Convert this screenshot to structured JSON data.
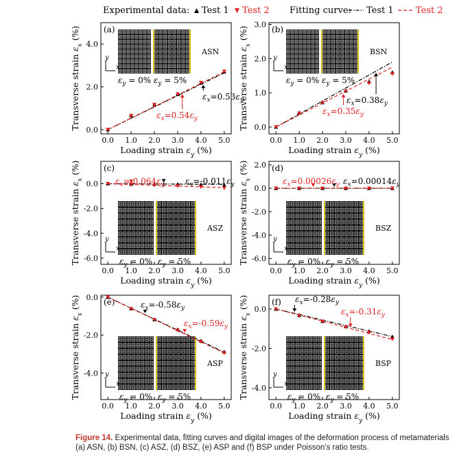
{
  "legend": {
    "experimental_label": "Experimental data:",
    "fitting_label": "Fitting curve:",
    "test1": "Test 1",
    "test2": "Test 2",
    "color_test1": "#000000",
    "color_test2": "#e02020"
  },
  "caption": {
    "label": "Figure 14.",
    "text": " Experimental data, fitting curves and digital images of the deformation process of metamaterials (a) ASN, (b) BSN, (c) ASZ, (d) BSZ, (e) ASP and (f) BSP under Poisson’s ratio tests."
  },
  "chart_data": [
    {
      "type": "line",
      "panel": "(a)",
      "sample": "ASN",
      "xlabel": "Loading strain εy (%)",
      "ylabel": "Transverse strain εx (%)",
      "xlim": [
        -0.3,
        5.3
      ],
      "ylim": [
        -0.2,
        5.0
      ],
      "xticks": [
        0.0,
        1.0,
        2.0,
        3.0,
        4.0,
        5.0
      ],
      "yticks": [
        0.0,
        2.0,
        4.0
      ],
      "x": [
        0,
        1,
        2,
        3,
        4,
        5
      ],
      "series": [
        {
          "name": "Test 1",
          "values": [
            0.0,
            0.66,
            1.18,
            1.65,
            2.18,
            2.7
          ]
        },
        {
          "name": "Test 2",
          "values": [
            0.0,
            0.65,
            1.17,
            1.66,
            2.2,
            2.72
          ]
        }
      ],
      "fits": [
        {
          "name": "Test 1",
          "slope": 0.53
        },
        {
          "name": "Test 2",
          "slope": 0.54
        }
      ],
      "annotations": {
        "test1": "0.53",
        "test2": "0.54"
      },
      "images": {
        "top": true,
        "left": "εy = 0%",
        "right": "εy = 5%"
      }
    },
    {
      "type": "line",
      "panel": "(b)",
      "sample": "BSN",
      "xlabel": "Loading strain εy (%)",
      "ylabel": "Transverse strain εx (%)",
      "xlim": [
        -0.3,
        5.3
      ],
      "ylim": [
        -0.2,
        3.05
      ],
      "xticks": [
        0.0,
        1.0,
        2.0,
        3.0,
        4.0,
        5.0
      ],
      "yticks": [
        0.0,
        1.0,
        2.0,
        3.0
      ],
      "x": [
        0,
        1,
        2,
        3,
        4,
        5
      ],
      "series": [
        {
          "name": "Test 1",
          "values": [
            0.0,
            0.42,
            0.72,
            1.06,
            1.33,
            1.6
          ]
        },
        {
          "name": "Test 2",
          "values": [
            0.0,
            0.4,
            0.7,
            1.05,
            1.28,
            1.55
          ]
        }
      ],
      "fits": [
        {
          "name": "Test 1",
          "slope": 0.38
        },
        {
          "name": "Test 2",
          "slope": 0.35
        }
      ],
      "annotations": {
        "test1": "0.38",
        "test2": "0.35"
      },
      "images": {
        "top": true,
        "left": "εy = 0%",
        "right": "εy = 5%"
      }
    },
    {
      "type": "line",
      "panel": "(c)",
      "sample": "ASZ",
      "xlabel": "Loading strain εy (%)",
      "ylabel": "Transverse strain εx (%)",
      "xlim": [
        -0.3,
        5.3
      ],
      "ylim": [
        -6.5,
        1.8
      ],
      "xticks": [
        0.0,
        1.0,
        2.0,
        3.0,
        4.0,
        5.0
      ],
      "yticks": [
        0.0,
        -2.0,
        -4.0,
        -6.0
      ],
      "x": [
        0,
        1,
        2,
        3,
        4,
        5
      ],
      "series": [
        {
          "name": "Test 1",
          "values": [
            0.0,
            -0.01,
            -0.02,
            -0.04,
            -0.06,
            -0.1
          ]
        },
        {
          "name": "Test 2",
          "values": [
            0.0,
            -0.05,
            -0.13,
            -0.19,
            -0.26,
            -0.35
          ]
        }
      ],
      "fits": [
        {
          "name": "Test 1",
          "slope": -0.011
        },
        {
          "name": "Test 2",
          "slope": -0.064
        }
      ],
      "annotations": {
        "test1": "-0.011",
        "test2": "-0.064"
      },
      "images": {
        "top": false,
        "left": "εy = 0%",
        "right": "εy = 5%"
      }
    },
    {
      "type": "line",
      "panel": "(d)",
      "sample": "BSZ",
      "xlabel": "Loading strain εy (%)",
      "ylabel": "Transverse strain εx (%)",
      "xlim": [
        -0.3,
        5.3
      ],
      "ylim": [
        -6.5,
        2.3
      ],
      "xticks": [
        0.0,
        1.0,
        2.0,
        3.0,
        4.0,
        5.0
      ],
      "yticks": [
        2.0,
        0.0,
        -2.0,
        -4.0,
        -6.0
      ],
      "x": [
        0,
        1,
        2,
        3,
        4,
        5
      ],
      "series": [
        {
          "name": "Test 1",
          "values": [
            0.0,
            0.0,
            0.0,
            0.0,
            0.0,
            0.0
          ]
        },
        {
          "name": "Test 2",
          "values": [
            0.0,
            0.0,
            0.0,
            0.0,
            0.0,
            0.0
          ]
        }
      ],
      "fits": [
        {
          "name": "Test 1",
          "slope": 0.00014
        },
        {
          "name": "Test 2",
          "slope": 0.00026
        }
      ],
      "annotations": {
        "test1": "0.00014",
        "test2": "0.00026"
      },
      "images": {
        "top": false,
        "left": "εy = 0%",
        "right": "εy = 5%"
      }
    },
    {
      "type": "line",
      "panel": "(e)",
      "sample": "ASP",
      "xlabel": "Loading strain εy (%)",
      "ylabel": "Transverse strain εx (%)",
      "xlim": [
        -0.3,
        5.3
      ],
      "ylim": [
        -5.4,
        0.1
      ],
      "xticks": [
        0.0,
        1.0,
        2.0,
        3.0,
        4.0,
        5.0
      ],
      "yticks": [
        0.0,
        -2.0,
        -4.0
      ],
      "x": [
        0,
        1,
        2,
        3,
        4,
        5
      ],
      "series": [
        {
          "name": "Test 1",
          "values": [
            0.0,
            -0.6,
            -1.18,
            -1.7,
            -2.3,
            -2.88
          ]
        },
        {
          "name": "Test 2",
          "values": [
            0.0,
            -0.62,
            -1.2,
            -1.75,
            -2.35,
            -2.95
          ]
        }
      ],
      "fits": [
        {
          "name": "Test 1",
          "slope": -0.58
        },
        {
          "name": "Test 2",
          "slope": -0.59
        }
      ],
      "annotations": {
        "test1": "-0.58",
        "test2": "-0.59"
      },
      "images": {
        "top": false,
        "left": "εy = 0%",
        "right": "εy = 5%"
      }
    },
    {
      "type": "line",
      "panel": "(f)",
      "sample": "BSP",
      "xlabel": "Loading strain εy (%)",
      "ylabel": "Transverse strain εx (%)",
      "xlim": [
        -0.3,
        5.3
      ],
      "ylim": [
        -4.6,
        0.7
      ],
      "xticks": [
        0.0,
        1.0,
        2.0,
        3.0,
        4.0,
        5.0
      ],
      "yticks": [
        0.0,
        -2.0,
        -4.0
      ],
      "x": [
        0,
        1,
        2,
        3,
        4,
        5
      ],
      "series": [
        {
          "name": "Test 1",
          "values": [
            0.0,
            -0.32,
            -0.62,
            -0.88,
            -1.12,
            -1.4
          ]
        },
        {
          "name": "Test 2",
          "values": [
            0.0,
            -0.33,
            -0.63,
            -0.92,
            -1.2,
            -1.53
          ]
        }
      ],
      "fits": [
        {
          "name": "Test 1",
          "slope": -0.28
        },
        {
          "name": "Test 2",
          "slope": -0.31
        }
      ],
      "annotations": {
        "test1": "-0.28",
        "test2": "-0.31"
      },
      "images": {
        "top": false,
        "left": "εy = 0%",
        "right": "εy = 5%"
      }
    }
  ]
}
